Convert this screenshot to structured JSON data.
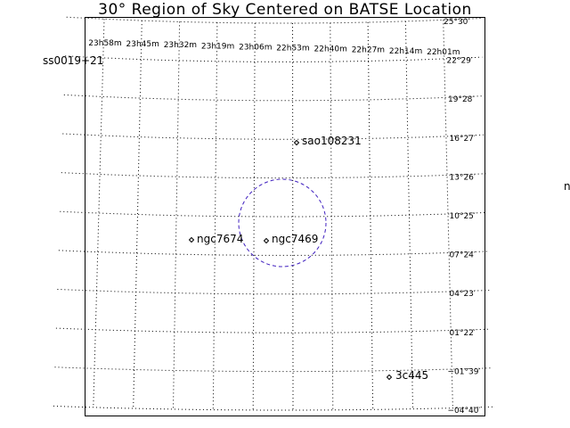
{
  "chart": {
    "title": "30° Region of Sky Centered on BATSE Location"
  },
  "chart_data": {
    "type": "scatter",
    "title": "30° Region of Sky Centered on BATSE Location",
    "ra_ticks": [
      "23h58m",
      "23h45m",
      "23h32m",
      "23h19m",
      "23h06m",
      "22h53m",
      "22h40m",
      "22h27m",
      "22h14m",
      "22h01m"
    ],
    "dec_ticks": [
      "25°30′",
      "22°29′",
      "19°28′",
      "16°27′",
      "13°26′",
      "10°25′",
      "07°24′",
      "04°23′",
      "01°22′",
      "−01°39′",
      "−04°40′"
    ],
    "grid": "dotted",
    "sources": [
      {
        "name": "ss0019+21",
        "ra": "00h19m",
        "dec": 21.0
      },
      {
        "name": "sao108231",
        "ra": "22h53m",
        "dec": 16.3
      },
      {
        "name": "ngc7674",
        "ra": "23h27m",
        "dec": 8.8
      },
      {
        "name": "ngc7469",
        "ra": "23h03m",
        "dec": 8.9
      },
      {
        "name": "3c445",
        "ra": "22h23m",
        "dec": -2.1
      }
    ],
    "error_circle": {
      "ra": "23h00m",
      "dec": 10.2,
      "radius_deg": 5,
      "color": "#3f1fbf",
      "style": "dashed"
    },
    "edge_labels": [
      "n"
    ]
  }
}
